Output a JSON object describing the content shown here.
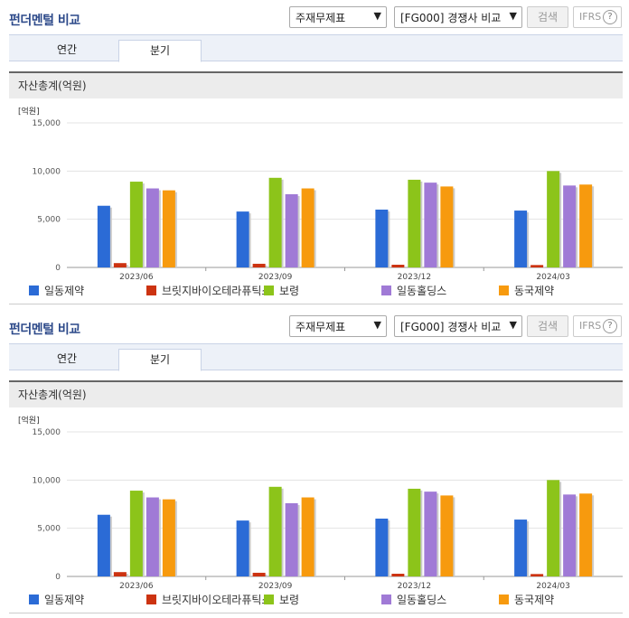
{
  "panels": [
    {
      "title": "펀더멘털 비교",
      "report_select": "주재무제표",
      "compare_select": "[FG000] 경쟁사 비교",
      "search_label": "검색",
      "ifrs_label": "IFRS",
      "help_glyph": "?",
      "tabs": [
        {
          "label": "연간",
          "active": false
        },
        {
          "label": "분기",
          "active": true
        }
      ],
      "section_title": "자산총계(억원)"
    },
    {
      "title": "펀더멘털 비교",
      "report_select": "주재무제표",
      "compare_select": "[FG000] 경쟁사 비교",
      "search_label": "검색",
      "ifrs_label": "IFRS",
      "help_glyph": "?",
      "tabs": [
        {
          "label": "연간",
          "active": false
        },
        {
          "label": "분기",
          "active": true
        }
      ],
      "section_title": "자산총계(억원)"
    }
  ],
  "chart_data": [
    {
      "type": "bar",
      "unit_label": "[억원]",
      "categories": [
        "2023/06",
        "2023/09",
        "2023/12",
        "2024/03"
      ],
      "ylim": [
        0,
        15000
      ],
      "yticks": [
        0,
        5000,
        10000,
        15000
      ],
      "ytick_labels": [
        "0",
        "5,000",
        "10,000",
        "15,000"
      ],
      "grid": true,
      "legend_position": "bottom",
      "series": [
        {
          "name": "일동제약",
          "color": "#2b6bd6",
          "values": [
            6400,
            5800,
            6000,
            5900
          ]
        },
        {
          "name": "브릿지바이오테라퓨틱스",
          "color": "#cc3311",
          "values": [
            450,
            380,
            280,
            250
          ]
        },
        {
          "name": "보령",
          "color": "#8cc41a",
          "values": [
            8900,
            9300,
            9100,
            10000
          ]
        },
        {
          "name": "일동홀딩스",
          "color": "#a07ad6",
          "values": [
            8200,
            7600,
            8800,
            8500
          ]
        },
        {
          "name": "동국제약",
          "color": "#f79a0e",
          "values": [
            8000,
            8200,
            8400,
            8600
          ]
        }
      ]
    },
    {
      "type": "bar",
      "unit_label": "[억원]",
      "categories": [
        "2023/06",
        "2023/09",
        "2023/12",
        "2024/03"
      ],
      "ylim": [
        0,
        15000
      ],
      "yticks": [
        0,
        5000,
        10000,
        15000
      ],
      "ytick_labels": [
        "0",
        "5,000",
        "10,000",
        "15,000"
      ],
      "grid": true,
      "legend_position": "bottom",
      "series": [
        {
          "name": "일동제약",
          "color": "#2b6bd6",
          "values": [
            6400,
            5800,
            6000,
            5900
          ]
        },
        {
          "name": "브릿지바이오테라퓨틱스",
          "color": "#cc3311",
          "values": [
            450,
            380,
            280,
            250
          ]
        },
        {
          "name": "보령",
          "color": "#8cc41a",
          "values": [
            8900,
            9300,
            9100,
            10000
          ]
        },
        {
          "name": "일동홀딩스",
          "color": "#a07ad6",
          "values": [
            8200,
            7600,
            8800,
            8500
          ]
        },
        {
          "name": "동국제약",
          "color": "#f79a0e",
          "values": [
            8000,
            8200,
            8400,
            8600
          ]
        }
      ]
    }
  ]
}
